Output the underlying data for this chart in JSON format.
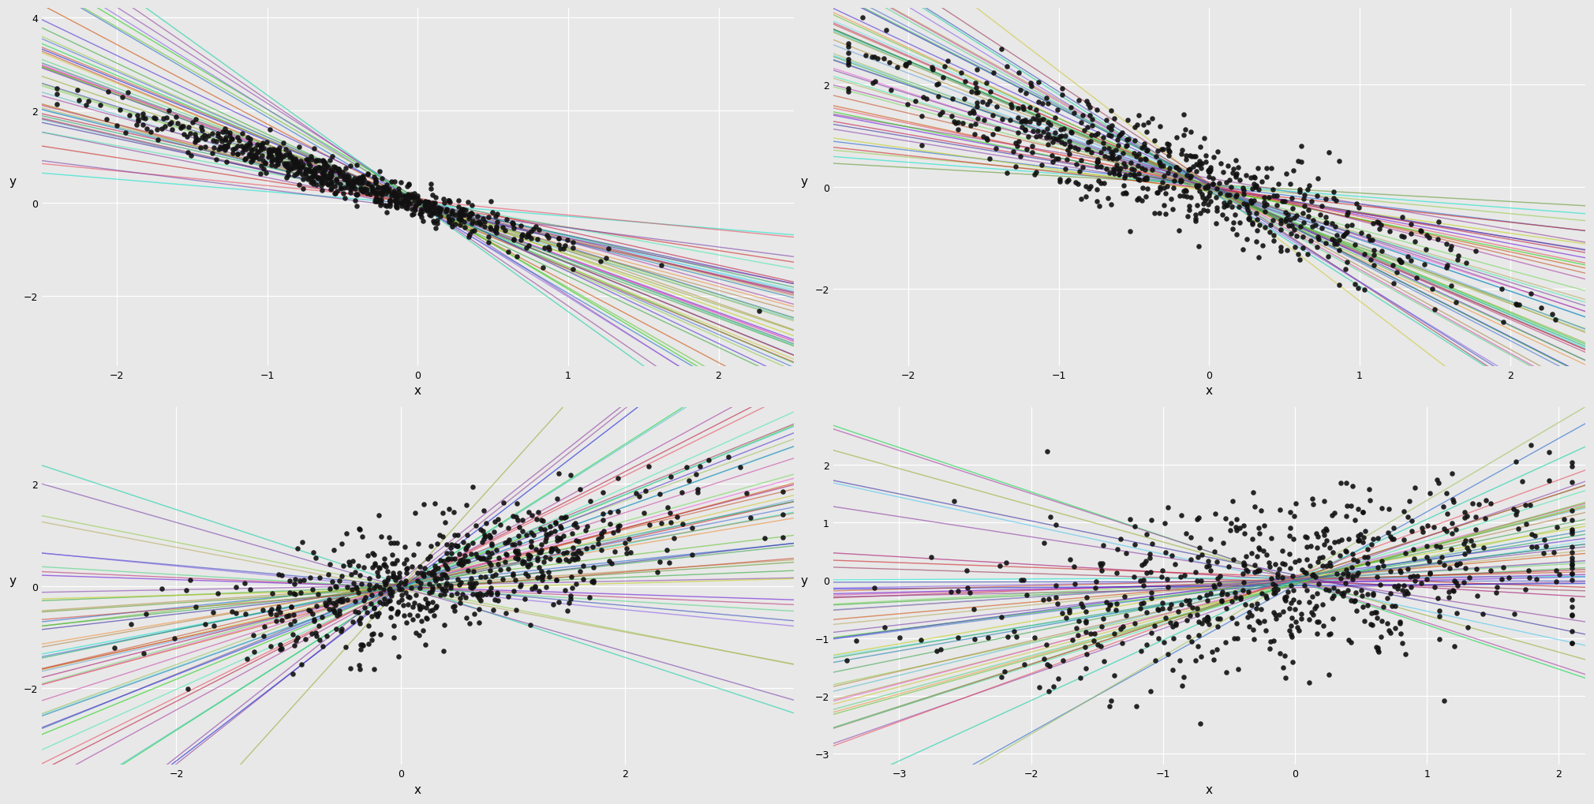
{
  "n_subplots": 4,
  "n_points": 700,
  "n_lines": 50,
  "background_color": "#E8E8E8",
  "point_color": "#111111",
  "point_size": 22,
  "point_alpha": 0.9,
  "line_alpha": 0.6,
  "line_width": 1.0,
  "subplots": [
    {
      "slope_mean": -1.0,
      "slope_std": 0.5,
      "intercept_mean": 0.0,
      "intercept_std": 0.05,
      "noise_std": 0.18,
      "x_center": 0.0,
      "x_data_mean": -0.5,
      "x_data_std": 0.7,
      "x_range": [
        -2.5,
        2.5
      ],
      "y_range": [
        -3.5,
        4.2
      ],
      "xlabel": "x",
      "ylabel": "y",
      "xticks": [
        -2,
        -1,
        0,
        1,
        2
      ],
      "yticks": [
        -2,
        0,
        2,
        4
      ]
    },
    {
      "slope_mean": -1.0,
      "slope_std": 0.5,
      "intercept_mean": 0.0,
      "intercept_std": 0.05,
      "noise_std": 0.45,
      "x_center": 0.0,
      "x_data_mean": -0.3,
      "x_data_std": 0.9,
      "x_range": [
        -2.5,
        2.5
      ],
      "y_range": [
        -3.5,
        3.5
      ],
      "xlabel": "x",
      "ylabel": "y",
      "xticks": [
        -2,
        -1,
        0,
        1,
        2
      ],
      "yticks": [
        -2,
        0,
        2
      ]
    },
    {
      "slope_mean": 0.55,
      "slope_std": 0.55,
      "intercept_mean": 0.0,
      "intercept_std": 0.05,
      "noise_std": 0.55,
      "x_center": 0.5,
      "x_data_mean": 0.5,
      "x_data_std": 1.0,
      "x_range": [
        -3.2,
        3.5
      ],
      "y_range": [
        -3.5,
        3.5
      ],
      "xlabel": "x",
      "ylabel": "y",
      "xticks": [
        -2,
        0,
        2
      ],
      "yticks": [
        -2,
        0,
        2
      ]
    },
    {
      "slope_mean": 0.3,
      "slope_std": 0.4,
      "intercept_mean": 0.0,
      "intercept_std": 0.05,
      "noise_std": 0.75,
      "x_center": -1.0,
      "x_data_mean": 0.0,
      "x_data_std": 1.2,
      "x_range": [
        -3.5,
        2.2
      ],
      "y_range": [
        -3.2,
        3.0
      ],
      "xlabel": "x",
      "ylabel": "y",
      "xticks": [
        -3,
        -2,
        -1,
        0,
        1,
        2
      ],
      "yticks": [
        -3,
        -2,
        -1,
        0,
        1,
        2
      ]
    }
  ]
}
